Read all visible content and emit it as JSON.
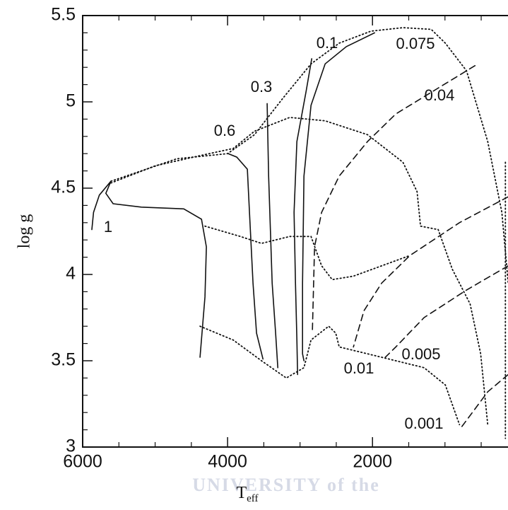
{
  "chart_data": {
    "type": "line",
    "x_label": "T",
    "x_label_subscript": "eff",
    "y_label": "log g",
    "watermark": "UNIVERSITY of the",
    "xlim": [
      6000,
      130
    ],
    "ylim": [
      3,
      5.5
    ],
    "xticks": [
      6000,
      4000,
      2000
    ],
    "yticks": [
      3,
      3.5,
      4,
      4.5,
      5,
      5.5
    ],
    "xticks_minor": [
      5500,
      5000,
      4500,
      3500,
      3000,
      2500,
      1500,
      1000,
      500
    ],
    "yticks_minor": [
      3.1,
      3.2,
      3.3,
      3.4,
      3.6,
      3.7,
      3.8,
      3.9,
      4.1,
      4.2,
      4.3,
      4.4,
      4.6,
      4.7,
      4.8,
      4.9,
      5.1,
      5.2,
      5.3,
      5.4
    ],
    "color": "#111111",
    "series": [
      {
        "name": "1",
        "style": "solid",
        "x": [
          5873,
          5850,
          5770,
          5610,
          5680,
          5580,
          5190,
          4605,
          4360,
          4293,
          4312,
          4380
        ],
        "y": [
          4.26,
          4.36,
          4.46,
          4.54,
          4.47,
          4.41,
          4.39,
          4.38,
          4.32,
          4.16,
          3.87,
          3.52
        ]
      },
      {
        "name": "0.6",
        "style": "solid",
        "x": [
          3990,
          3873,
          3727,
          3698,
          3649,
          3600,
          3512
        ],
        "y": [
          4.7,
          4.68,
          4.61,
          4.36,
          3.95,
          3.66,
          3.51
        ]
      },
      {
        "name": "0.3",
        "style": "solid",
        "x": [
          3454,
          3434,
          3385,
          3337,
          3307
        ],
        "y": [
          4.99,
          4.57,
          3.95,
          3.66,
          3.46
        ]
      },
      {
        "name": "0.1",
        "style": "solid",
        "x": [
          2839,
          2917,
          3044,
          3083,
          3063,
          3044,
          3034
        ],
        "y": [
          5.25,
          5.06,
          4.77,
          4.36,
          3.95,
          3.62,
          3.42
        ]
      },
      {
        "name": "0.075",
        "style": "solid",
        "x": [
          1971,
          2361,
          2654,
          2849,
          2946,
          2966,
          2966,
          2946
        ],
        "y": [
          5.4,
          5.32,
          5.22,
          4.98,
          4.57,
          3.95,
          3.54,
          3.5
        ]
      },
      {
        "name": "0.04",
        "style": "dashed",
        "x": [
          585,
          1093,
          1678,
          2068,
          2459,
          2702,
          2800,
          2829
        ],
        "y": [
          5.21,
          5.08,
          4.93,
          4.77,
          4.57,
          4.36,
          4.16,
          3.68
        ]
      },
      {
        "name": "0.01",
        "style": "dashed",
        "x": [
          127,
          800,
          1483,
          1873,
          2117,
          2263
        ],
        "y": [
          4.45,
          4.3,
          4.11,
          3.95,
          3.79,
          3.58
        ]
      },
      {
        "name": "0.005",
        "style": "dashed",
        "x": [
          127,
          702,
          1288,
          1678,
          1824
        ],
        "y": [
          4.05,
          3.91,
          3.75,
          3.58,
          3.52
        ]
      },
      {
        "name": "0.001",
        "style": "dashed",
        "x": [
          127,
          410,
          605,
          800
        ],
        "y": [
          3.42,
          3.32,
          3.21,
          3.1
        ]
      }
    ],
    "isochrones": [
      {
        "x": [
          5610,
          4702,
          4000,
          3629,
          3239,
          2849,
          2459,
          2020,
          1580,
          1190,
          995,
          702,
          410,
          215,
          127
        ],
        "y": [
          4.54,
          4.67,
          4.7,
          4.81,
          5.02,
          5.22,
          5.34,
          5.41,
          5.43,
          5.42,
          5.34,
          5.18,
          4.77,
          4.36,
          3.95
        ]
      },
      {
        "x": [
          5610,
          4995,
          4361,
          3922,
          3629,
          3142,
          2654,
          2068,
          1580,
          1385,
          1337,
          1093,
          898,
          654,
          507,
          410
        ],
        "y": [
          4.53,
          4.63,
          4.69,
          4.73,
          4.83,
          4.91,
          4.89,
          4.81,
          4.65,
          4.48,
          4.28,
          4.26,
          4.03,
          3.83,
          3.54,
          3.13
        ]
      },
      {
        "x": [
          4312,
          3824,
          3532,
          3142,
          2849,
          2702,
          2556,
          2263,
          1873,
          1483
        ],
        "y": [
          4.28,
          4.22,
          4.18,
          4.22,
          4.22,
          4.05,
          3.97,
          3.99,
          4.05,
          4.11
        ]
      },
      {
        "x": [
          4380,
          3922,
          3532,
          3190,
          2946,
          2849,
          2605,
          2507,
          2459,
          2068,
          1678,
          1288,
          995,
          800
        ],
        "y": [
          3.7,
          3.62,
          3.5,
          3.4,
          3.46,
          3.62,
          3.7,
          3.66,
          3.58,
          3.54,
          3.5,
          3.46,
          3.36,
          3.13
        ]
      },
      {
        "x": [
          166,
          166
        ],
        "y": [
          4.65,
          3.05
        ]
      }
    ]
  }
}
